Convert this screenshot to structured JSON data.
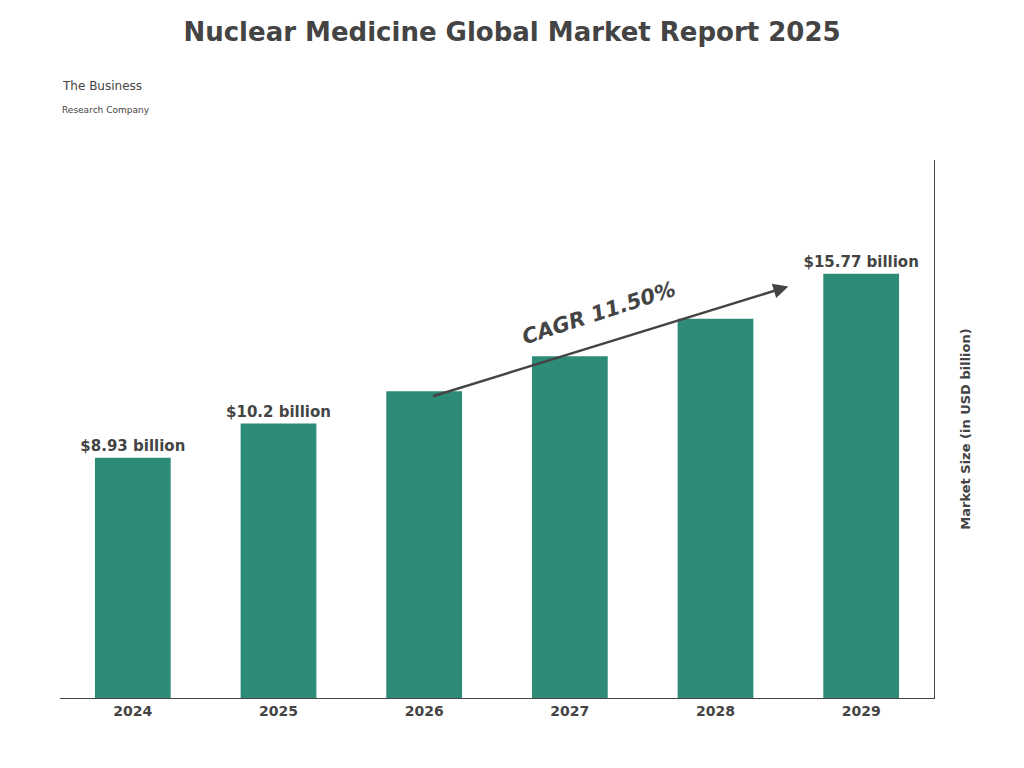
{
  "chart_data": {
    "type": "bar",
    "title": "Nuclear Medicine Global Market Report 2025",
    "categories": [
      "2024",
      "2025",
      "2026",
      "2027",
      "2028",
      "2029"
    ],
    "values": [
      8.93,
      10.2,
      11.4,
      12.7,
      14.1,
      15.77
    ],
    "value_labels": [
      "$8.93 billion",
      "$10.2 billion",
      null,
      null,
      null,
      "$15.77 billion"
    ],
    "color": "#2d8b78",
    "ylabel": "Market Size (in USD billion)",
    "ylim": [
      0,
      20
    ],
    "yticks": [],
    "tick_labels": "x",
    "grid": false,
    "annotations": [
      "CAGR 11.50%",
      "The Business",
      "Research Company"
    ]
  }
}
